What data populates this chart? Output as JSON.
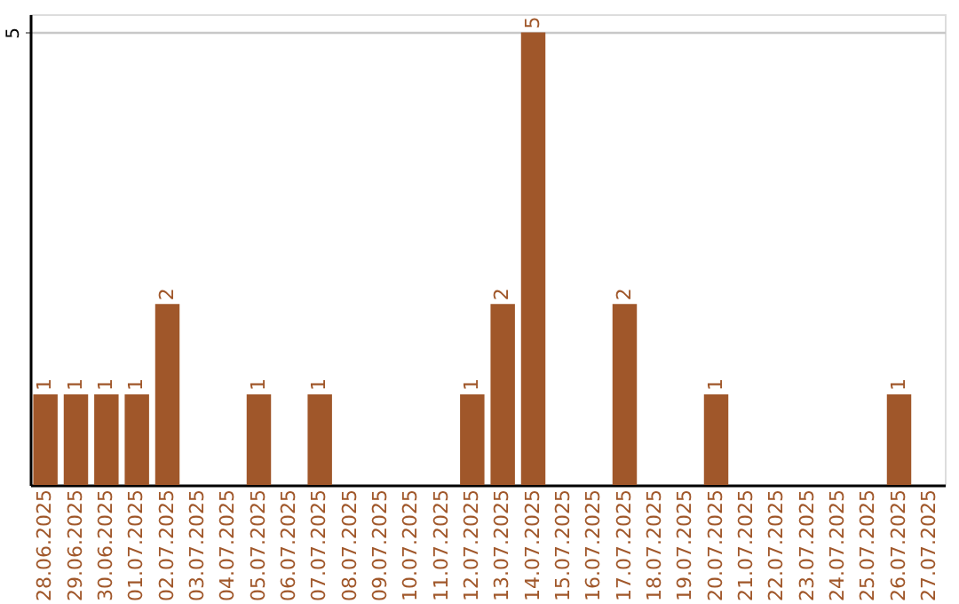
{
  "chart_data": {
    "type": "bar",
    "categories": [
      "28.06.2025",
      "29.06.2025",
      "30.06.2025",
      "01.07.2025",
      "02.07.2025",
      "03.07.2025",
      "04.07.2025",
      "05.07.2025",
      "06.07.2025",
      "07.07.2025",
      "08.07.2025",
      "09.07.2025",
      "10.07.2025",
      "11.07.2025",
      "12.07.2025",
      "13.07.2025",
      "14.07.2025",
      "15.07.2025",
      "16.07.2025",
      "17.07.2025",
      "18.07.2025",
      "19.07.2025",
      "20.07.2025",
      "21.07.2025",
      "22.07.2025",
      "23.07.2025",
      "24.07.2025",
      "25.07.2025",
      "26.07.2025",
      "27.07.2025"
    ],
    "values": [
      1,
      1,
      1,
      1,
      2,
      0,
      0,
      1,
      0,
      1,
      0,
      0,
      0,
      0,
      1,
      2,
      5,
      0,
      0,
      2,
      0,
      0,
      1,
      0,
      0,
      0,
      0,
      0,
      1,
      0
    ],
    "value_labels": [
      "1",
      "1",
      "1",
      "1",
      "2",
      null,
      null,
      "1",
      null,
      "1",
      null,
      null,
      null,
      null,
      "1",
      "2",
      "5",
      null,
      null,
      "2",
      null,
      null,
      "1",
      null,
      null,
      null,
      null,
      null,
      "1",
      null
    ],
    "color": "#a0572a",
    "ylim": [
      0,
      5.2
    ],
    "yticks": [
      5
    ],
    "grid": "y"
  }
}
